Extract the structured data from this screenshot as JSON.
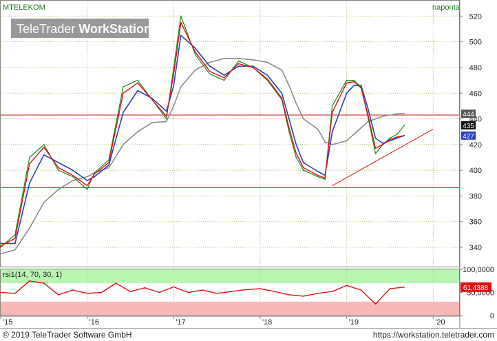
{
  "header": {
    "symbol": "MTELEKOM",
    "period": "naponta",
    "watermark_plain": "TeleTrader",
    "watermark_bold": "WorkStation"
  },
  "footer": {
    "copyright": "© 2019 TeleTrader Software GmbH",
    "url": "https://workstation.teletrader.com"
  },
  "colors": {
    "price_up": "#1a8a1a",
    "price_down": "#cc1010",
    "ma_short": "#e01010",
    "ma_mid": "#2a3fbf",
    "ma_long": "#8c8c8c",
    "grid": "#b8c27a",
    "rsi_overbought_zone": "#b8f5b0",
    "rsi_oversold_zone": "#f8b8b8",
    "rsi_line": "#e01010"
  },
  "chart_data": [
    {
      "type": "line",
      "name": "price",
      "x_ticks": [
        "'15",
        "'16",
        "'17",
        "'18",
        "'19",
        "'20"
      ],
      "y_ticks": [
        "340",
        "360",
        "380",
        "400",
        "420",
        "440",
        "460",
        "480",
        "500",
        "520"
      ],
      "ylim": [
        325,
        532
      ],
      "grid": true,
      "x": [
        "2015-01",
        "2015-03",
        "2015-05",
        "2015-07",
        "2015-09",
        "2015-11",
        "2016-01",
        "2016-02",
        "2016-04",
        "2016-06",
        "2016-08",
        "2016-10",
        "2016-12",
        "2017-01",
        "2017-02",
        "2017-04",
        "2017-06",
        "2017-08",
        "2017-10",
        "2017-12",
        "2018-02",
        "2018-04",
        "2018-05",
        "2018-06",
        "2018-07",
        "2018-09",
        "2018-10",
        "2018-11",
        "2019-01",
        "2019-02",
        "2019-03",
        "2019-04",
        "2019-05",
        "2019-06",
        "2019-07",
        "2019-08",
        "2019-09"
      ],
      "series": [
        {
          "role": "close",
          "values": [
            340,
            350,
            410,
            420,
            400,
            395,
            385,
            398,
            408,
            465,
            470,
            455,
            440,
            480,
            520,
            490,
            475,
            470,
            485,
            480,
            470,
            455,
            430,
            410,
            400,
            395,
            393,
            450,
            470,
            470,
            465,
            440,
            413,
            420,
            425,
            428,
            435
          ]
        },
        {
          "role": "short average",
          "values": [
            341,
            347,
            405,
            418,
            402,
            396,
            388,
            397,
            406,
            460,
            468,
            455,
            442,
            475,
            515,
            492,
            477,
            472,
            483,
            480,
            471,
            456,
            433,
            413,
            402,
            396,
            394,
            445,
            468,
            469,
            464,
            442,
            417,
            420,
            424,
            426,
            427
          ]
        },
        {
          "role": "middle average",
          "values": [
            343,
            343,
            390,
            412,
            406,
            400,
            392,
            395,
            404,
            445,
            462,
            456,
            446,
            466,
            505,
            495,
            481,
            474,
            481,
            481,
            474,
            460,
            440,
            420,
            406,
            399,
            396,
            430,
            460,
            466,
            466,
            447,
            425,
            421,
            423,
            425,
            427
          ]
        },
        {
          "role": "long average",
          "values": [
            335,
            338,
            355,
            375,
            385,
            392,
            395,
            398,
            402,
            420,
            430,
            437,
            438,
            450,
            465,
            478,
            484,
            487,
            487,
            486,
            484,
            478,
            466,
            452,
            440,
            432,
            422,
            420,
            423,
            428,
            433,
            438,
            440,
            442,
            443,
            444,
            444
          ]
        }
      ],
      "price_labels": [
        "444",
        "435",
        "427"
      ],
      "horizontal_lines": [
        443,
        386.5
      ],
      "trendline": [
        {
          "x": "2018-11",
          "y": 388
        },
        {
          "x": "2020-01",
          "y": 432
        }
      ]
    },
    {
      "type": "line",
      "name": "rsi1(14, 70, 30, 1)",
      "y_ticks": [
        "0",
        "50,0000",
        "100,0000"
      ],
      "ylim": [
        0,
        100
      ],
      "bands": [
        [
          70,
          100
        ],
        [
          0,
          30
        ]
      ],
      "last_value_label": "61,4388",
      "x": [
        "2015-01",
        "2015-03",
        "2015-05",
        "2015-07",
        "2015-09",
        "2015-11",
        "2016-01",
        "2016-03",
        "2016-05",
        "2016-07",
        "2016-09",
        "2016-11",
        "2017-01",
        "2017-03",
        "2017-05",
        "2017-07",
        "2017-09",
        "2017-11",
        "2018-01",
        "2018-03",
        "2018-05",
        "2018-07",
        "2018-09",
        "2018-11",
        "2019-01",
        "2019-03",
        "2019-05",
        "2019-07",
        "2019-09"
      ],
      "values": [
        50,
        48,
        75,
        70,
        45,
        55,
        48,
        50,
        70,
        52,
        60,
        50,
        62,
        50,
        55,
        48,
        52,
        56,
        58,
        52,
        45,
        42,
        48,
        52,
        65,
        55,
        25,
        58,
        61.44
      ]
    }
  ]
}
